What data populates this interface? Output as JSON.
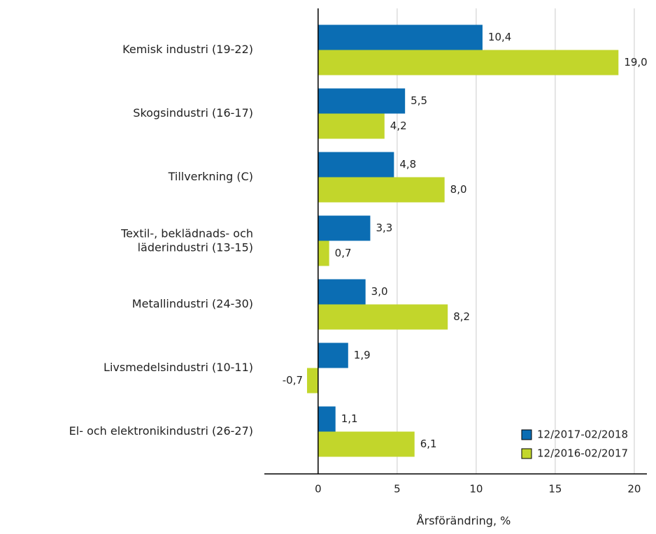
{
  "chart_data": {
    "type": "hbar",
    "xlabel": "Årsförändring, %",
    "categories": [
      "Kemisk industri (19-22)",
      "Skogsindustri (16-17)",
      "Tillverkning (C)",
      [
        "Textil-, beklädnads- och",
        "läderindustri (13-15)"
      ],
      "Metallindustri (24-30)",
      "Livsmedelsindustri (10-11)",
      "El- och elektronikindustri (26-27)"
    ],
    "series": [
      {
        "name": "12/2017-02/2018",
        "color": "#0b6db3",
        "values": [
          10.4,
          5.5,
          4.8,
          3.3,
          3.0,
          1.9,
          1.1
        ],
        "value_labels": [
          "10,4",
          "5,5",
          "4,8",
          "3,3",
          "3,0",
          "1,9",
          "1,1"
        ]
      },
      {
        "name": "12/2016-02/2017",
        "color": "#c2d62b",
        "values": [
          19.0,
          4.2,
          8.0,
          0.7,
          8.2,
          -0.7,
          6.1
        ],
        "value_labels": [
          "19,0",
          "4,2",
          "8,0",
          "0,7",
          "8,2",
          "-0,7",
          "6,1"
        ]
      }
    ],
    "xlim": [
      -3.4,
      20.8
    ],
    "xticks": [
      0,
      5,
      10,
      15,
      20
    ],
    "grid": true,
    "legend": "lower right"
  }
}
